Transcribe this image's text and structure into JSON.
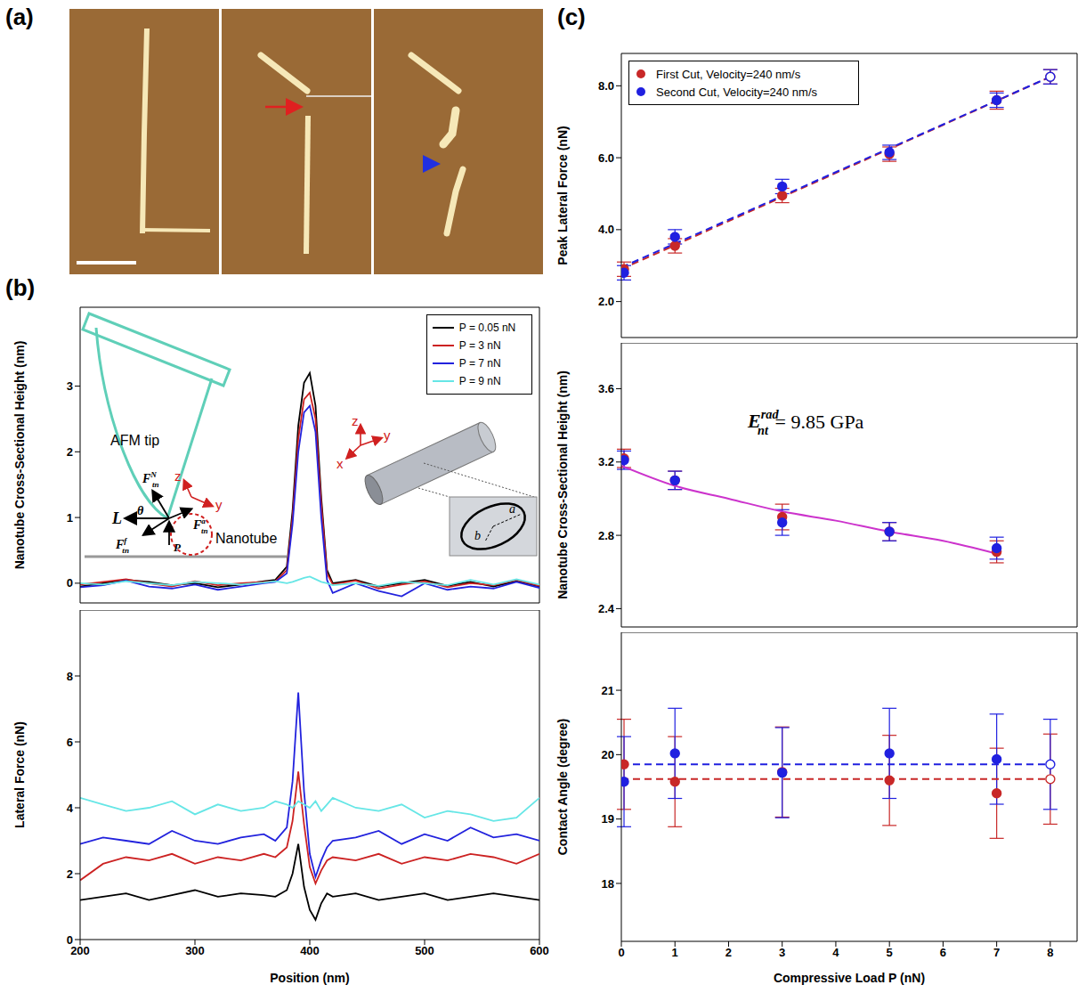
{
  "panel_labels": [
    "(a)",
    "(b)",
    "(c)"
  ],
  "schematic": {
    "tip": "AFM tip",
    "nanotube": "Nanotube",
    "forces": [
      {
        "text": "L"
      },
      {
        "text": "θ"
      },
      {
        "text": "F",
        "sub": "tn",
        "sup": "N"
      },
      {
        "text": "F",
        "sub": "tn",
        "sup": "f"
      },
      {
        "text": "F",
        "sub": "tn",
        "sup": "a"
      },
      {
        "text": "P"
      }
    ],
    "axes": [
      "z",
      "y"
    ],
    "cylinder_axes": [
      "z",
      "y",
      "x"
    ],
    "semi_axes": [
      "a",
      "b"
    ]
  },
  "chart_data": [
    {
      "type": "line",
      "ylabel": "Nanotube Cross-Sectional Height (nm)",
      "x": [
        200,
        220,
        240,
        260,
        280,
        300,
        320,
        340,
        360,
        370,
        380,
        385,
        390,
        395,
        400,
        405,
        410,
        415,
        420,
        440,
        460,
        480,
        500,
        520,
        540,
        560,
        580,
        600
      ],
      "series": [
        {
          "name": "P = 0.05 nN",
          "color": "#000000",
          "values": [
            -0.05,
            0.0,
            0.05,
            0.02,
            -0.03,
            0.0,
            -0.06,
            -0.02,
            0.03,
            0.05,
            0.25,
            1.1,
            2.4,
            3.05,
            3.2,
            2.7,
            1.3,
            0.2,
            0.0,
            0.05,
            -0.05,
            0.0,
            0.05,
            -0.04,
            0.02,
            -0.05,
            0.03,
            -0.05
          ]
        },
        {
          "name": "P = 3 nN",
          "color": "#cc2222",
          "values": [
            -0.02,
            0.02,
            0.06,
            0.0,
            -0.05,
            0.03,
            -0.03,
            0.0,
            0.02,
            0.03,
            0.2,
            1.0,
            2.2,
            2.8,
            2.9,
            2.5,
            1.2,
            0.15,
            -0.02,
            0.04,
            -0.08,
            -0.02,
            0.03,
            -0.06,
            0.0,
            -0.03,
            0.05,
            -0.04
          ]
        },
        {
          "name": "P = 7 nN",
          "color": "#2222dd",
          "values": [
            -0.06,
            -0.03,
            0.04,
            -0.05,
            -0.08,
            -0.02,
            -0.1,
            -0.05,
            0.0,
            0.02,
            0.15,
            0.9,
            2.0,
            2.6,
            2.7,
            2.3,
            1.0,
            0.05,
            -0.15,
            0.0,
            -0.12,
            -0.2,
            0.0,
            -0.1,
            -0.05,
            -0.08,
            0.02,
            -0.07
          ]
        },
        {
          "name": "P = 9 nN",
          "color": "#66e6e6",
          "values": [
            0.0,
            -0.02,
            0.03,
            0.0,
            -0.03,
            0.02,
            0.0,
            -0.02,
            0.01,
            0.03,
            0.0,
            0.02,
            0.05,
            0.08,
            0.1,
            0.06,
            0.02,
            0.0,
            -0.03,
            0.0,
            -0.04,
            0.02,
            0.0,
            -0.03,
            0.05,
            -0.02,
            0.06,
            -0.02
          ]
        }
      ],
      "xlim": [
        200,
        600
      ],
      "xticks": [
        200,
        300,
        400,
        500,
        600
      ],
      "ylim": [
        -0.3,
        4.2
      ],
      "yticks": [
        0,
        1,
        2,
        3
      ],
      "tick_labels": "y",
      "legend": "upper right"
    },
    {
      "type": "line",
      "ylabel": "Lateral Force (nN)",
      "xlabel": "Position (nm)",
      "x": [
        200,
        220,
        240,
        260,
        280,
        300,
        320,
        340,
        360,
        370,
        380,
        385,
        390,
        395,
        400,
        405,
        410,
        415,
        420,
        440,
        460,
        480,
        500,
        520,
        540,
        560,
        580,
        600
      ],
      "series": [
        {
          "color": "#000000",
          "values": [
            1.2,
            1.3,
            1.4,
            1.2,
            1.35,
            1.5,
            1.3,
            1.4,
            1.35,
            1.3,
            1.5,
            2.0,
            2.9,
            1.6,
            0.9,
            0.6,
            1.1,
            1.4,
            1.3,
            1.4,
            1.2,
            1.3,
            1.4,
            1.2,
            1.3,
            1.4,
            1.3,
            1.2
          ]
        },
        {
          "color": "#cc2222",
          "values": [
            1.8,
            2.3,
            2.5,
            2.4,
            2.6,
            2.3,
            2.5,
            2.4,
            2.6,
            2.5,
            2.8,
            3.6,
            5.1,
            3.5,
            2.2,
            1.7,
            2.1,
            2.4,
            2.5,
            2.4,
            2.6,
            2.3,
            2.5,
            2.4,
            2.6,
            2.5,
            2.3,
            2.6
          ]
        },
        {
          "color": "#2222dd",
          "values": [
            2.9,
            3.1,
            3.0,
            2.9,
            3.3,
            3.0,
            2.9,
            3.1,
            3.2,
            3.0,
            3.4,
            4.8,
            7.5,
            4.5,
            2.6,
            1.9,
            2.4,
            2.8,
            3.0,
            3.1,
            3.3,
            2.9,
            3.2,
            3.0,
            3.4,
            3.1,
            3.2,
            3.0
          ]
        },
        {
          "color": "#66e6e6",
          "values": [
            4.3,
            4.1,
            3.9,
            4.0,
            4.2,
            3.8,
            4.1,
            3.9,
            4.0,
            4.2,
            4.1,
            4.0,
            4.2,
            4.1,
            4.0,
            4.2,
            3.9,
            4.1,
            4.3,
            4.0,
            3.9,
            4.1,
            3.7,
            3.9,
            3.8,
            3.6,
            3.7,
            4.3
          ]
        }
      ],
      "xlim": [
        200,
        600
      ],
      "xticks": [
        200,
        300,
        400,
        500,
        600
      ],
      "ylim": [
        0,
        10
      ],
      "yticks": [
        0,
        2,
        4,
        6,
        8
      ]
    },
    {
      "type": "scatter",
      "ylabel": "Peak Lateral Force (nN)",
      "xlim": [
        0,
        8.5
      ],
      "xticks": [
        0,
        1,
        2,
        3,
        4,
        5,
        6,
        7,
        8
      ],
      "ylim": [
        1,
        8.9
      ],
      "yticks": [
        {
          "value": 2,
          "label": "2.0"
        },
        {
          "value": 4,
          "label": "4.0"
        },
        {
          "value": 6,
          "label": "6.0"
        },
        {
          "value": 8,
          "label": "8.0"
        }
      ],
      "tick_labels": "y",
      "legend": "upper left",
      "series": [
        {
          "name": "First Cut, Velocity=240 nm/s",
          "color": "#c82828",
          "marker": "filled",
          "x": [
            0.05,
            1,
            3,
            5,
            7
          ],
          "values": [
            2.9,
            3.55,
            4.95,
            6.1,
            7.6
          ],
          "errors": [
            0.2,
            0.2,
            0.2,
            0.2,
            0.25
          ]
        },
        {
          "name": "Second Cut, Velocity=240 nm/s",
          "color": "#2020e0",
          "marker": "filled",
          "x": [
            0.05,
            1,
            3,
            5,
            7
          ],
          "values": [
            2.8,
            3.8,
            5.2,
            6.15,
            7.6
          ],
          "errors": [
            0.2,
            0.2,
            0.2,
            0.2,
            0.2
          ]
        },
        {
          "color": "#c82828",
          "marker": "open",
          "x": [
            8
          ],
          "values": [
            8.25
          ],
          "errors": [
            0.2
          ]
        },
        {
          "color": "#2020e0",
          "marker": "open",
          "x": [
            8
          ],
          "values": [
            8.25
          ],
          "errors": [
            0.2
          ]
        },
        {
          "type": "line",
          "line_style": "dashed",
          "color": "#c82828",
          "x": [
            0,
            8
          ],
          "values": [
            2.9,
            8.25
          ]
        },
        {
          "type": "line",
          "line_style": "dashed",
          "color": "#2020e0",
          "x": [
            0,
            8
          ],
          "values": [
            2.95,
            8.25
          ]
        }
      ]
    },
    {
      "type": "scatter",
      "ylabel": "Nanotube Cross-Sectional Height (nm)",
      "xlim": [
        0,
        8.5
      ],
      "xticks": [
        0,
        1,
        2,
        3,
        4,
        5,
        6,
        7,
        8
      ],
      "ylim": [
        2.3,
        3.85
      ],
      "yticks": [
        2.4,
        2.8,
        3.2,
        3.6
      ],
      "tick_labels": "y",
      "annotation": {
        "base": "E",
        "sup": "rad",
        "sub": "nt",
        "after": "= 9.85 GPa"
      },
      "series": [
        {
          "color": "#c82828",
          "marker": "filled",
          "x": [
            0.05,
            1,
            3,
            5,
            7
          ],
          "values": [
            3.22,
            3.1,
            2.9,
            2.82,
            2.71
          ],
          "errors": [
            0.05,
            0.05,
            0.07,
            0.05,
            0.06
          ]
        },
        {
          "color": "#2020e0",
          "marker": "filled",
          "x": [
            0.05,
            1,
            3,
            5,
            7
          ],
          "values": [
            3.21,
            3.1,
            2.87,
            2.82,
            2.73
          ],
          "errors": [
            0.05,
            0.05,
            0.07,
            0.05,
            0.06
          ]
        },
        {
          "type": "line",
          "line_style": "solid",
          "color": "#cc33cc",
          "x": [
            0,
            1,
            2,
            3,
            4,
            5,
            6,
            7
          ],
          "values": [
            3.18,
            3.07,
            3.0,
            2.93,
            2.88,
            2.82,
            2.77,
            2.7
          ]
        }
      ]
    },
    {
      "type": "scatter",
      "ylabel": "Contact Angle (degree)",
      "xlabel": "Compressive Load P (nN)",
      "xlim": [
        0,
        8.5
      ],
      "xticks": [
        0,
        1,
        2,
        3,
        4,
        5,
        6,
        7,
        8
      ],
      "ylim": [
        17.1,
        21.9
      ],
      "yticks": [
        18,
        19,
        20,
        21
      ],
      "series": [
        {
          "color": "#c82828",
          "marker": "filled",
          "x": [
            0.05,
            1,
            3,
            5,
            7
          ],
          "values": [
            19.85,
            19.58,
            19.73,
            19.6,
            19.4
          ],
          "errors": [
            0.7,
            0.7,
            0.7,
            0.7,
            0.7
          ]
        },
        {
          "color": "#2020e0",
          "marker": "filled",
          "x": [
            0.05,
            1,
            3,
            5,
            7
          ],
          "values": [
            19.58,
            20.02,
            19.72,
            20.02,
            19.93
          ],
          "errors": [
            0.7,
            0.7,
            0.7,
            0.7,
            0.7
          ]
        },
        {
          "color": "#c82828",
          "marker": "open",
          "x": [
            8
          ],
          "values": [
            19.62
          ],
          "errors": [
            0.7
          ]
        },
        {
          "color": "#2020e0",
          "marker": "open",
          "x": [
            8
          ],
          "values": [
            19.85
          ],
          "errors": [
            0.7
          ]
        },
        {
          "type": "line",
          "line_style": "dashed",
          "color": "#c82828",
          "x": [
            0,
            8
          ],
          "values": [
            19.62,
            19.62
          ]
        },
        {
          "type": "line",
          "line_style": "dashed",
          "color": "#2020e0",
          "x": [
            0,
            8
          ],
          "values": [
            19.85,
            19.85
          ]
        }
      ]
    }
  ]
}
